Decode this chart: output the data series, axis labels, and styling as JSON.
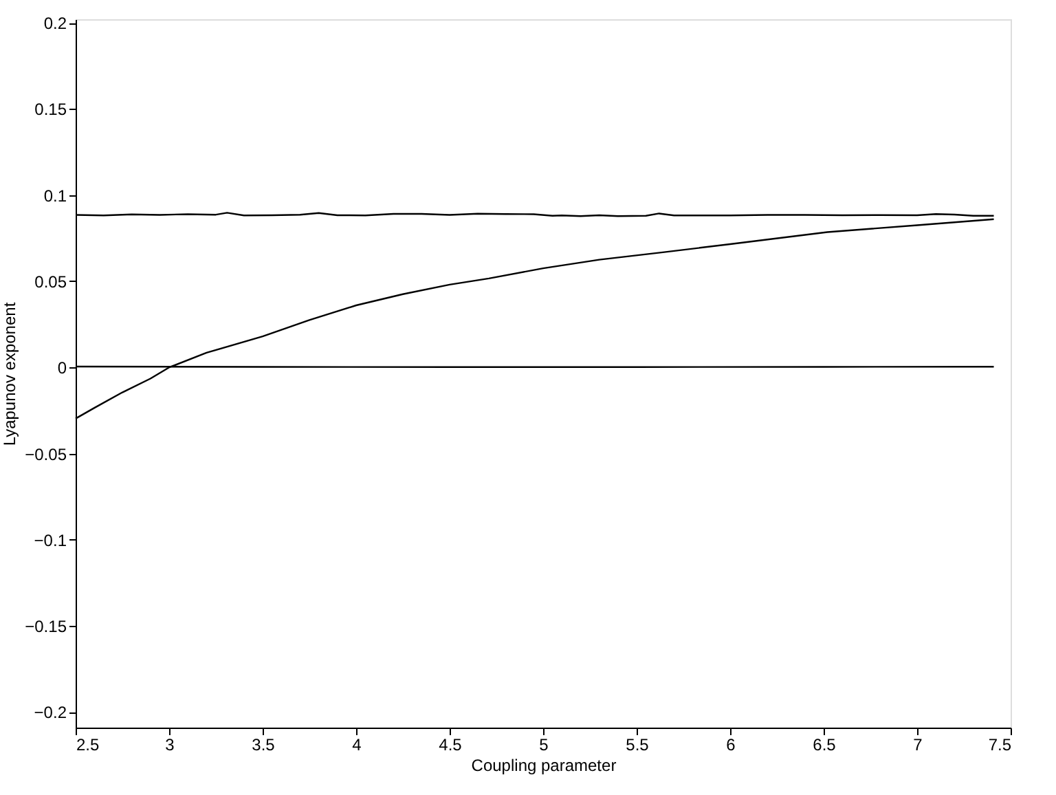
{
  "chart_data": {
    "type": "line",
    "xlabel": "Coupling parameter",
    "ylabel": "Lyapunov exponent",
    "xlim": [
      2.5,
      7.5
    ],
    "ylim": [
      -0.209,
      0.202
    ],
    "xticks": [
      2.5,
      3,
      3.5,
      4,
      4.5,
      5,
      5.5,
      6,
      6.5,
      7,
      7.5
    ],
    "yticks": [
      -0.2,
      -0.15,
      -0.1,
      -0.05,
      0,
      0.05,
      0.1,
      0.15,
      0.2
    ],
    "grid": false,
    "legend": false,
    "marker": "none",
    "line_style": "solid",
    "series": [
      {
        "color": "#000000",
        "x": [
          2.5,
          2.65,
          2.8,
          2.95,
          3.1,
          3.25,
          3.31,
          3.4,
          3.55,
          3.7,
          3.8,
          3.9,
          4.05,
          4.2,
          4.35,
          4.5,
          4.65,
          4.8,
          4.95,
          5.05,
          5.1,
          5.2,
          5.3,
          5.4,
          5.55,
          5.62,
          5.7,
          5.85,
          6.0,
          6.2,
          6.4,
          6.6,
          6.8,
          7.0,
          7.1,
          7.2,
          7.3,
          7.41
        ],
        "values": [
          0.0885,
          0.0882,
          0.0888,
          0.0885,
          0.0889,
          0.0886,
          0.0897,
          0.0882,
          0.0883,
          0.0886,
          0.0896,
          0.0883,
          0.0882,
          0.0891,
          0.0891,
          0.0885,
          0.0892,
          0.089,
          0.0889,
          0.088,
          0.0882,
          0.0878,
          0.0883,
          0.0878,
          0.088,
          0.0893,
          0.0882,
          0.0882,
          0.0882,
          0.0885,
          0.0885,
          0.0883,
          0.0884,
          0.0883,
          0.089,
          0.0887,
          0.088,
          0.088
        ]
      },
      {
        "color": "#000000",
        "x": [
          2.5,
          3.5,
          4.5,
          5.5,
          6.5,
          7.41
        ],
        "values": [
          0.0005,
          0.0003,
          0.0002,
          0.0002,
          0.0003,
          0.0004
        ]
      },
      {
        "color": "#000000",
        "x": [
          2.5,
          2.6,
          2.75,
          2.9,
          3.0,
          3.2,
          3.5,
          3.75,
          4.0,
          4.25,
          4.5,
          4.71,
          5.0,
          5.3,
          5.64,
          6.0,
          6.52,
          7.0,
          7.41
        ],
        "values": [
          -0.0297,
          -0.0235,
          -0.0145,
          -0.0065,
          0.0,
          0.0085,
          0.018,
          0.0275,
          0.036,
          0.0425,
          0.048,
          0.0516,
          0.0575,
          0.0625,
          0.0668,
          0.0715,
          0.0785,
          0.0825,
          0.086
        ]
      }
    ]
  }
}
